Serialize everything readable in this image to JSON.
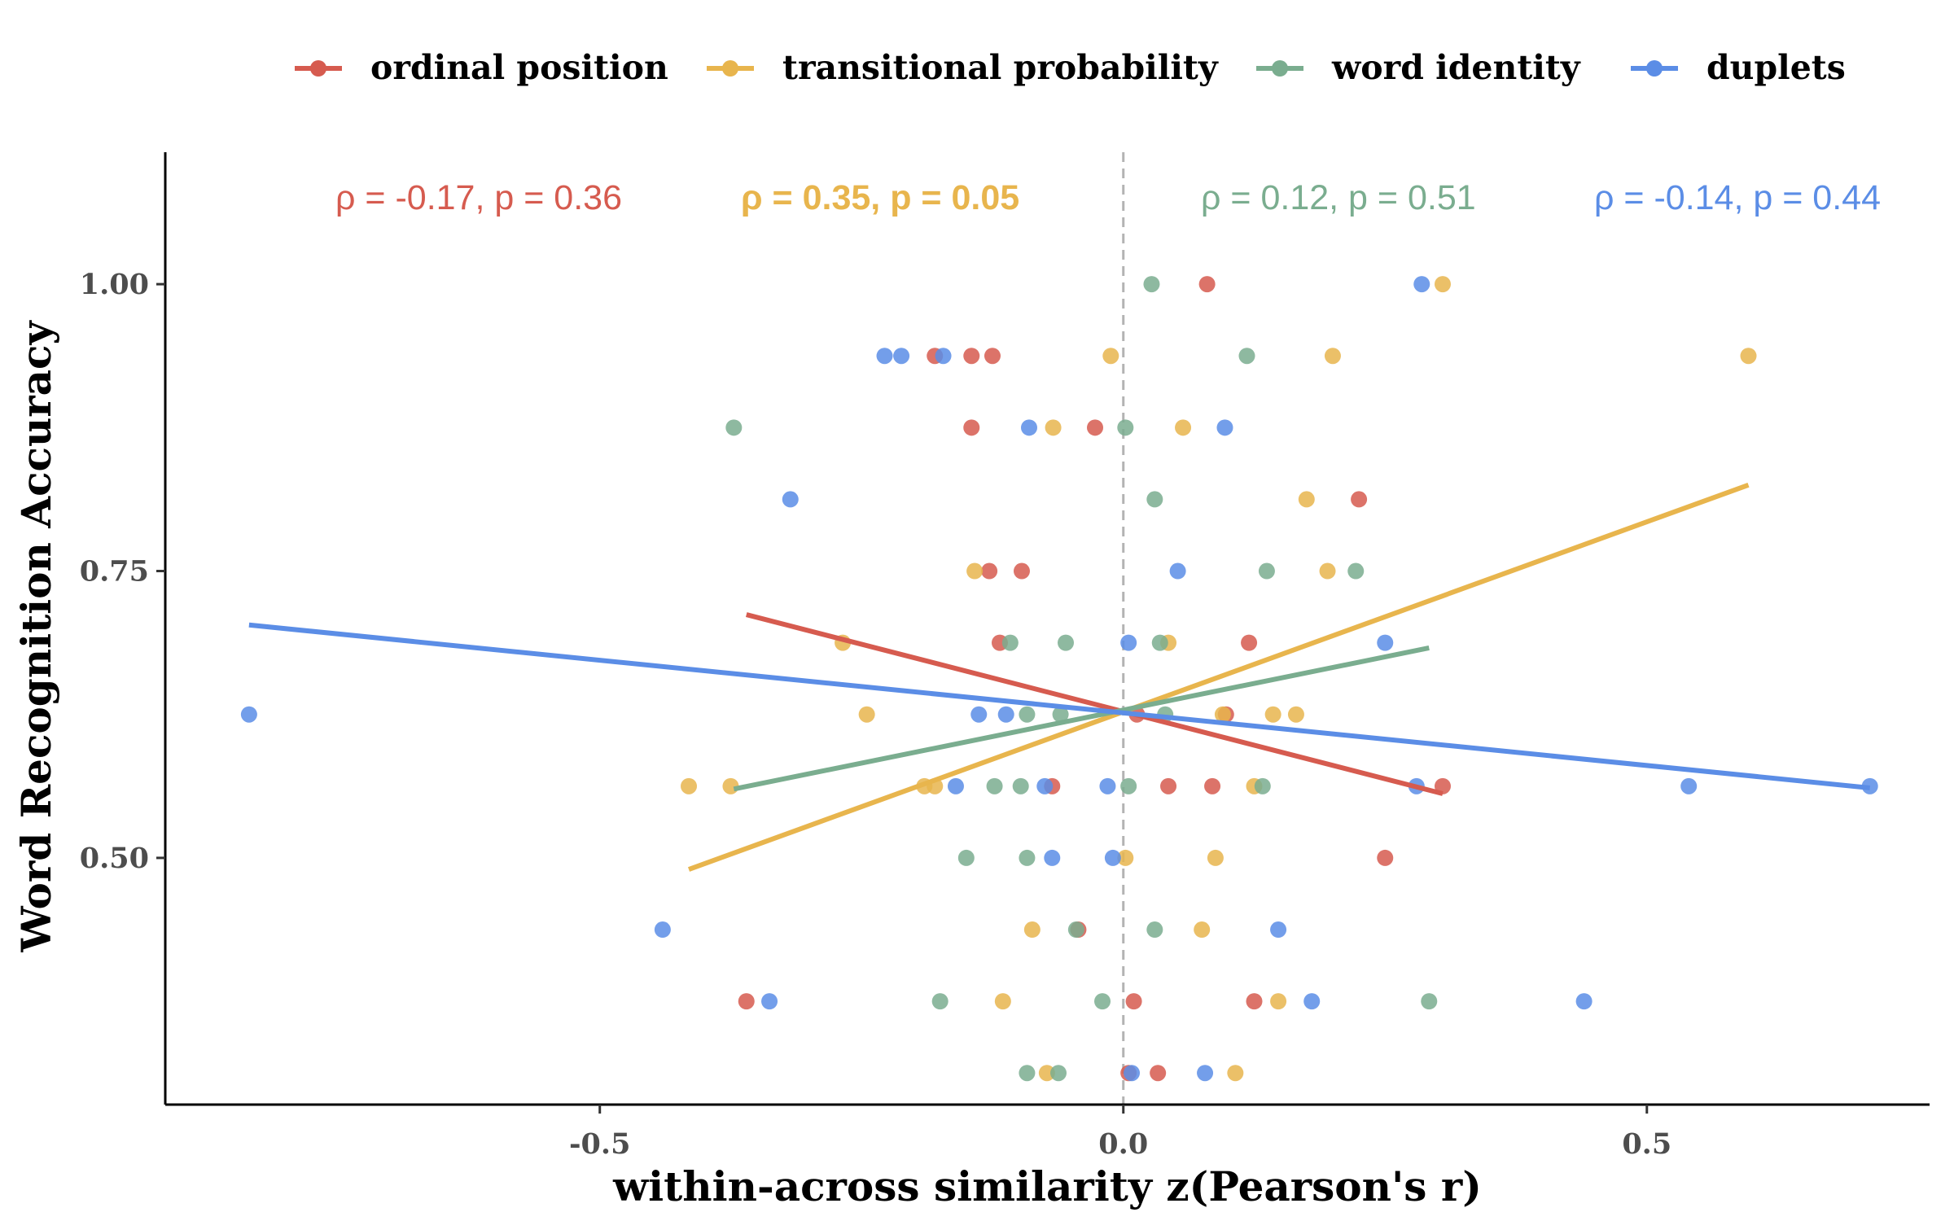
{
  "chart_data": {
    "type": "scatter",
    "xlabel": "within-across similarity z(Pearson's r)",
    "ylabel": "Word Recognition Accuracy",
    "xlim": [
      -0.915,
      0.77
    ],
    "ylim": [
      0.285,
      1.115
    ],
    "xticks": [
      -0.5,
      0.0,
      0.5
    ],
    "xtick_labels": [
      "-0.5",
      "0.0",
      "0.5"
    ],
    "yticks": [
      0.5,
      0.75,
      1.0
    ],
    "ytick_labels": [
      "0.50",
      "0.75",
      "1.00"
    ],
    "vline": 0.0,
    "grid": false,
    "legend_position": "top",
    "series": [
      {
        "name": "ordinal position",
        "color": "#d65b4f",
        "points": [
          [
            0.08,
            1.0
          ],
          [
            -0.18,
            0.9375
          ],
          [
            -0.145,
            0.9375
          ],
          [
            -0.125,
            0.9375
          ],
          [
            -0.145,
            0.875
          ],
          [
            -0.027,
            0.875
          ],
          [
            0.225,
            0.8125
          ],
          [
            -0.128,
            0.75
          ],
          [
            -0.097,
            0.75
          ],
          [
            -0.118,
            0.6875
          ],
          [
            0.12,
            0.6875
          ],
          [
            0.013,
            0.625
          ],
          [
            0.098,
            0.625
          ],
          [
            -0.068,
            0.5625
          ],
          [
            0.043,
            0.5625
          ],
          [
            0.085,
            0.5625
          ],
          [
            0.305,
            0.5625
          ],
          [
            0.25,
            0.5
          ],
          [
            -0.043,
            0.4375
          ],
          [
            -0.36,
            0.375
          ],
          [
            0.01,
            0.375
          ],
          [
            0.125,
            0.375
          ],
          [
            0.005,
            0.3125
          ],
          [
            0.033,
            0.3125
          ]
        ],
        "fit": {
          "x": [
            -0.36,
            0.305
          ],
          "y": [
            0.712,
            0.556
          ]
        },
        "annotation": "ρ = -0.17, p = 0.36",
        "annotation_bold": false
      },
      {
        "name": "transitional probability",
        "color": "#e8b54d",
        "points": [
          [
            0.305,
            1.0
          ],
          [
            0.2,
            0.9375
          ],
          [
            -0.012,
            0.9375
          ],
          [
            0.597,
            0.9375
          ],
          [
            -0.067,
            0.875
          ],
          [
            0.057,
            0.875
          ],
          [
            0.175,
            0.8125
          ],
          [
            -0.142,
            0.75
          ],
          [
            0.195,
            0.75
          ],
          [
            -0.268,
            0.6875
          ],
          [
            0.043,
            0.6875
          ],
          [
            -0.245,
            0.625
          ],
          [
            0.095,
            0.625
          ],
          [
            0.143,
            0.625
          ],
          [
            0.165,
            0.625
          ],
          [
            -0.415,
            0.5625
          ],
          [
            -0.375,
            0.5625
          ],
          [
            -0.19,
            0.5625
          ],
          [
            -0.18,
            0.5625
          ],
          [
            0.125,
            0.5625
          ],
          [
            0.002,
            0.5
          ],
          [
            0.088,
            0.5
          ],
          [
            -0.087,
            0.4375
          ],
          [
            0.075,
            0.4375
          ],
          [
            -0.115,
            0.375
          ],
          [
            0.148,
            0.375
          ],
          [
            -0.073,
            0.3125
          ],
          [
            0.107,
            0.3125
          ]
        ],
        "fit": {
          "x": [
            -0.415,
            0.597
          ],
          "y": [
            0.49,
            0.825
          ]
        },
        "annotation": "ρ = 0.35, p = 0.05",
        "annotation_bold": true
      },
      {
        "name": "word identity",
        "color": "#7aad8f",
        "points": [
          [
            0.027,
            1.0
          ],
          [
            0.118,
            0.9375
          ],
          [
            -0.372,
            0.875
          ],
          [
            0.002,
            0.875
          ],
          [
            0.03,
            0.8125
          ],
          [
            0.137,
            0.75
          ],
          [
            0.222,
            0.75
          ],
          [
            -0.108,
            0.6875
          ],
          [
            -0.055,
            0.6875
          ],
          [
            0.035,
            0.6875
          ],
          [
            -0.092,
            0.625
          ],
          [
            -0.06,
            0.625
          ],
          [
            0.04,
            0.625
          ],
          [
            -0.123,
            0.5625
          ],
          [
            -0.098,
            0.5625
          ],
          [
            0.005,
            0.5625
          ],
          [
            0.133,
            0.5625
          ],
          [
            -0.15,
            0.5
          ],
          [
            -0.092,
            0.5
          ],
          [
            -0.045,
            0.4375
          ],
          [
            0.03,
            0.4375
          ],
          [
            -0.175,
            0.375
          ],
          [
            -0.02,
            0.375
          ],
          [
            0.292,
            0.375
          ],
          [
            -0.092,
            0.3125
          ],
          [
            -0.062,
            0.3125
          ]
        ],
        "fit": {
          "x": [
            -0.372,
            0.292
          ],
          "y": [
            0.56,
            0.683
          ]
        },
        "annotation": "ρ = 0.12, p = 0.51",
        "annotation_bold": false
      },
      {
        "name": "duplets",
        "color": "#5b8de6",
        "points": [
          [
            0.285,
            1.0
          ],
          [
            -0.228,
            0.9375
          ],
          [
            -0.212,
            0.9375
          ],
          [
            -0.172,
            0.9375
          ],
          [
            -0.09,
            0.875
          ],
          [
            0.097,
            0.875
          ],
          [
            -0.318,
            0.8125
          ],
          [
            0.052,
            0.75
          ],
          [
            0.25,
            0.6875
          ],
          [
            0.005,
            0.6875
          ],
          [
            -0.835,
            0.625
          ],
          [
            -0.138,
            0.625
          ],
          [
            -0.112,
            0.625
          ],
          [
            -0.16,
            0.5625
          ],
          [
            -0.075,
            0.5625
          ],
          [
            -0.015,
            0.5625
          ],
          [
            0.28,
            0.5625
          ],
          [
            0.54,
            0.5625
          ],
          [
            0.713,
            0.5625
          ],
          [
            -0.068,
            0.5
          ],
          [
            -0.01,
            0.5
          ],
          [
            -0.44,
            0.4375
          ],
          [
            0.148,
            0.4375
          ],
          [
            -0.338,
            0.375
          ],
          [
            0.18,
            0.375
          ],
          [
            0.44,
            0.375
          ],
          [
            0.078,
            0.3125
          ],
          [
            0.008,
            0.3125
          ]
        ],
        "fit": {
          "x": [
            -0.835,
            0.713
          ],
          "y": [
            0.703,
            0.561
          ]
        },
        "annotation": "ρ = -0.14, p = 0.44",
        "annotation_bold": false
      }
    ]
  }
}
